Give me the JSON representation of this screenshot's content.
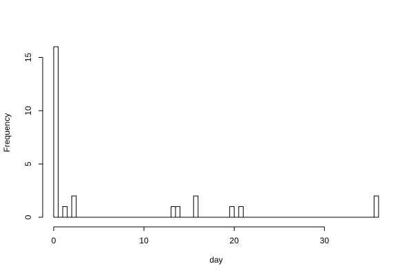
{
  "chart_data": {
    "type": "histogram",
    "xlabel": "day",
    "ylabel": "Frequency",
    "xlim": [
      0,
      36
    ],
    "ylim": [
      0,
      16
    ],
    "x_ticks": [
      0,
      10,
      20,
      30
    ],
    "y_ticks": [
      0,
      5,
      10,
      15
    ],
    "bin_width": 0.5,
    "bins": [
      {
        "start": 0.0,
        "end": 0.5,
        "count": 16
      },
      {
        "start": 1.0,
        "end": 1.5,
        "count": 1
      },
      {
        "start": 2.0,
        "end": 2.5,
        "count": 2
      },
      {
        "start": 13.0,
        "end": 13.5,
        "count": 1
      },
      {
        "start": 13.5,
        "end": 14.0,
        "count": 1
      },
      {
        "start": 15.5,
        "end": 16.0,
        "count": 2
      },
      {
        "start": 19.5,
        "end": 20.0,
        "count": 1
      },
      {
        "start": 20.5,
        "end": 21.0,
        "count": 1
      },
      {
        "start": 35.5,
        "end": 36.0,
        "count": 2
      }
    ],
    "grid": false,
    "legend": "none"
  }
}
